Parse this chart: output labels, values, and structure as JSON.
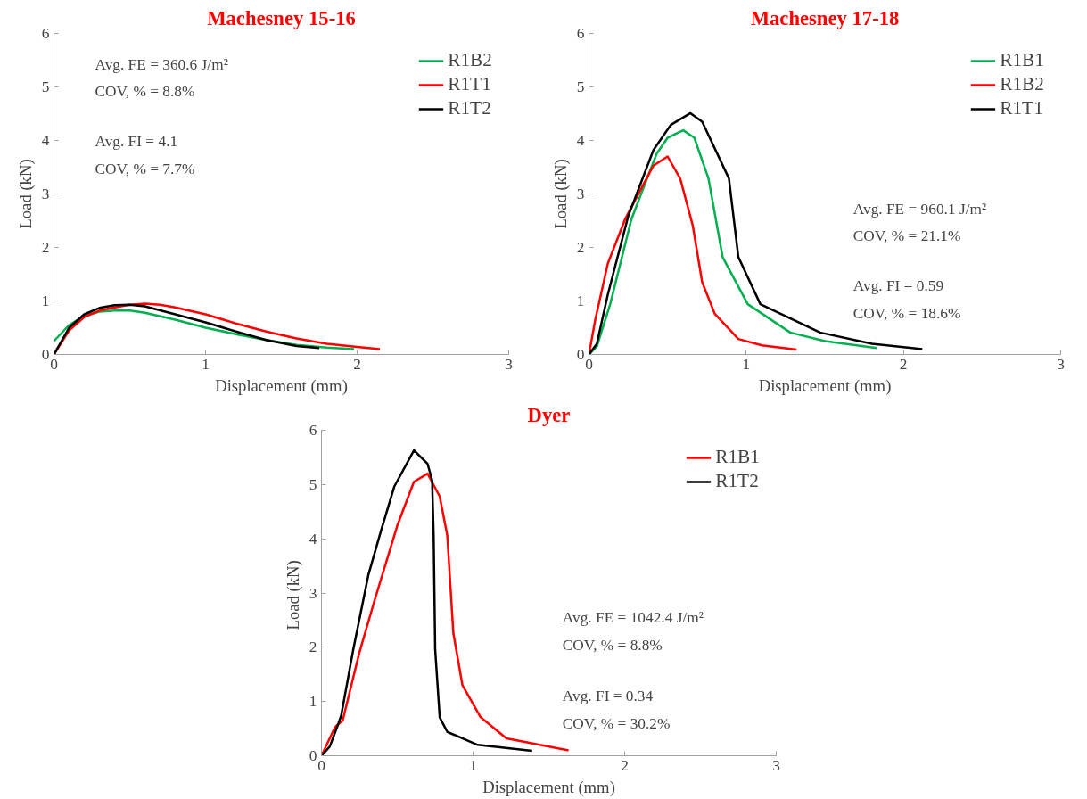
{
  "chart_data": [
    {
      "type": "line",
      "title": "Machesney 15-16",
      "xlabel": "Displacement (mm)",
      "ylabel": "Load (kN)",
      "xlim": [
        0,
        3
      ],
      "ylim": [
        0,
        6
      ],
      "xticks": [
        0,
        1,
        2,
        3
      ],
      "yticks": [
        0,
        1,
        2,
        3,
        4,
        5,
        6
      ],
      "grid": false,
      "legend": "top right",
      "marker": "none",
      "line_style": "solid",
      "annotations": [
        "Avg. FE = 360.6 J/m²",
        "COV, % = 8.8%",
        "Avg. FI = 4.1",
        "COV, % = 7.7%"
      ],
      "series": [
        {
          "name": "R1B2",
          "color": "#00b050",
          "x": [
            0,
            0.1,
            0.2,
            0.3,
            0.4,
            0.5,
            0.6,
            0.8,
            1.0,
            1.2,
            1.4,
            1.6,
            1.8,
            1.98
          ],
          "values": [
            0.25,
            0.55,
            0.72,
            0.8,
            0.82,
            0.82,
            0.78,
            0.65,
            0.5,
            0.38,
            0.27,
            0.18,
            0.13,
            0.1
          ]
        },
        {
          "name": "R1T1",
          "color": "#ff0000",
          "x": [
            0,
            0.1,
            0.2,
            0.3,
            0.4,
            0.5,
            0.6,
            0.7,
            0.8,
            1.0,
            1.2,
            1.4,
            1.6,
            1.8,
            2.0,
            2.15
          ],
          "values": [
            0,
            0.45,
            0.7,
            0.82,
            0.88,
            0.93,
            0.95,
            0.93,
            0.88,
            0.75,
            0.58,
            0.43,
            0.3,
            0.2,
            0.14,
            0.1
          ]
        },
        {
          "name": "R1T2",
          "color": "#000000",
          "x": [
            0,
            0.1,
            0.2,
            0.3,
            0.4,
            0.5,
            0.6,
            0.8,
            1.0,
            1.2,
            1.4,
            1.6,
            1.75
          ],
          "values": [
            0,
            0.5,
            0.75,
            0.87,
            0.92,
            0.93,
            0.9,
            0.75,
            0.6,
            0.43,
            0.27,
            0.16,
            0.12
          ]
        }
      ]
    },
    {
      "type": "line",
      "title": "Machesney 17-18",
      "xlabel": "Displacement (mm)",
      "ylabel": "Load (kN)",
      "xlim": [
        0,
        3
      ],
      "ylim": [
        0,
        6
      ],
      "xticks": [
        0,
        1,
        2,
        3
      ],
      "yticks": [
        0,
        1,
        2,
        3,
        4,
        5,
        6
      ],
      "grid": false,
      "legend": "top right",
      "marker": "none",
      "line_style": "solid",
      "annotations": [
        "Avg. FE = 960.1 J/m²",
        "COV, % = 21.1%",
        "Avg. FI = 0.59",
        "COV, % = 18.6%"
      ],
      "series": [
        {
          "name": "R1B1",
          "color": "#00b050",
          "x": [
            0,
            0.05,
            0.135,
            0.27,
            0.43,
            0.5,
            0.6,
            0.67,
            0.76,
            0.85,
            1.01,
            1.28,
            1.5,
            1.83
          ],
          "values": [
            0,
            0.15,
            0.94,
            2.53,
            3.75,
            4.05,
            4.19,
            4.05,
            3.29,
            1.82,
            0.94,
            0.41,
            0.25,
            0.12
          ]
        },
        {
          "name": "R1B2",
          "color": "#ff0000",
          "x": [
            0,
            0.04,
            0.12,
            0.23,
            0.41,
            0.5,
            0.58,
            0.66,
            0.72,
            0.8,
            0.95,
            1.1,
            1.32
          ],
          "values": [
            0,
            0.65,
            1.7,
            2.53,
            3.53,
            3.7,
            3.29,
            2.41,
            1.35,
            0.76,
            0.29,
            0.17,
            0.09
          ]
        },
        {
          "name": "R1T1",
          "color": "#000000",
          "x": [
            0,
            0.05,
            0.12,
            0.25,
            0.41,
            0.52,
            0.645,
            0.72,
            0.89,
            0.95,
            1.09,
            1.47,
            1.8,
            2.12
          ],
          "values": [
            0,
            0.2,
            1.12,
            2.59,
            3.82,
            4.29,
            4.51,
            4.35,
            3.29,
            1.82,
            0.94,
            0.41,
            0.2,
            0.1
          ]
        }
      ]
    },
    {
      "type": "line",
      "title": "Dyer",
      "xlabel": "Displacement (mm)",
      "ylabel": "Load  (kN)",
      "xlim": [
        0,
        3
      ],
      "ylim": [
        0,
        6
      ],
      "xticks": [
        0,
        1,
        2,
        3
      ],
      "yticks": [
        0,
        1,
        2,
        3,
        4,
        5,
        6
      ],
      "grid": false,
      "legend": "top right",
      "marker": "none",
      "line_style": "solid",
      "annotations": [
        "Avg. FE = 1042.4 J/m²",
        "COV, % = 8.8%",
        "Avg. FI = 0.34",
        "COV, % = 30.2%"
      ],
      "series": [
        {
          "name": "R1B1",
          "color": "#ff0000",
          "x": [
            0,
            0.09,
            0.14,
            0.25,
            0.35,
            0.5,
            0.61,
            0.7,
            0.78,
            0.83,
            0.87,
            0.93,
            1.05,
            1.22,
            1.63
          ],
          "values": [
            0,
            0.53,
            0.65,
            1.9,
            2.86,
            4.24,
            5.05,
            5.2,
            4.78,
            4.06,
            2.26,
            1.3,
            0.71,
            0.32,
            0.1
          ]
        },
        {
          "name": "R1T2",
          "color": "#000000",
          "x": [
            0,
            0.055,
            0.11,
            0.13,
            0.21,
            0.31,
            0.39,
            0.48,
            0.61,
            0.7,
            0.73,
            0.74,
            0.75,
            0.78,
            0.83,
            1.03,
            1.39
          ],
          "values": [
            0,
            0.17,
            0.58,
            0.74,
            1.96,
            3.34,
            4.12,
            4.96,
            5.63,
            5.38,
            5.08,
            4.06,
            1.96,
            0.71,
            0.44,
            0.2,
            0.09
          ]
        }
      ]
    }
  ]
}
